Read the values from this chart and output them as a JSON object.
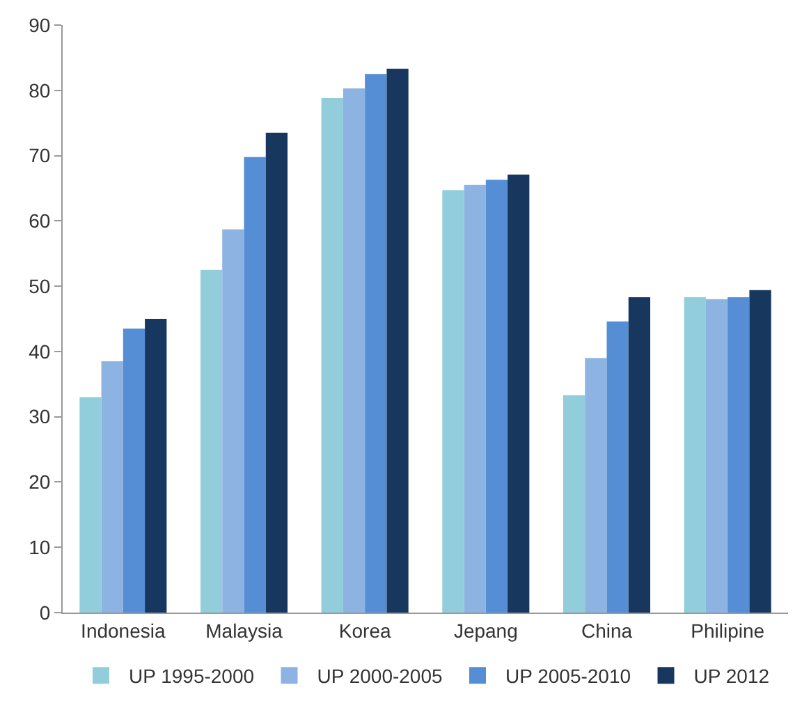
{
  "chart_data": {
    "type": "bar",
    "categories": [
      "Indonesia",
      "Malaysia",
      "Korea",
      "Jepang",
      "China",
      "Philipine"
    ],
    "series": [
      {
        "name": "UP 1995-2000",
        "color": "#92cddc",
        "values": [
          33,
          52.5,
          78.8,
          64.7,
          33.3,
          48.3
        ]
      },
      {
        "name": "UP 2000-2005",
        "color": "#8db3e2",
        "values": [
          38.5,
          58.7,
          80.3,
          65.5,
          39,
          48
        ]
      },
      {
        "name": "UP 2005-2010",
        "color": "#558ed5",
        "values": [
          43.5,
          69.8,
          82.5,
          66.3,
          44.6,
          48.3
        ]
      },
      {
        "name": "UP 2012",
        "color": "#17375e",
        "values": [
          45,
          73.5,
          83.3,
          67.1,
          48.3,
          49.4
        ]
      }
    ],
    "ylim": [
      0,
      90
    ],
    "yticks": [
      0,
      10,
      20,
      30,
      40,
      50,
      60,
      70,
      80,
      90
    ],
    "legend": "bottom"
  }
}
